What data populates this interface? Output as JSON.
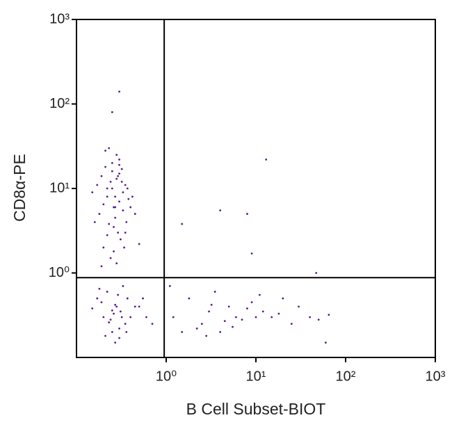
{
  "chart_data": {
    "type": "scatter",
    "x_label": "B Cell Subset-BIOT",
    "y_label": "CD8α-PE",
    "log_scale": true,
    "color": "#5b1a8c",
    "xlim": [
      0.1,
      1000
    ],
    "ylim": [
      0.1,
      1000
    ],
    "xticks": [
      {
        "value": 1,
        "label": "10⁰"
      },
      {
        "value": 10,
        "label": "10¹"
      },
      {
        "value": 100,
        "label": "10²"
      },
      {
        "value": 1000,
        "label": "10³"
      }
    ],
    "yticks": [
      {
        "value": 1,
        "label": "10⁰"
      },
      {
        "value": 10,
        "label": "10¹"
      },
      {
        "value": 100,
        "label": "10²"
      },
      {
        "value": 1000,
        "label": "10³"
      }
    ],
    "gates": {
      "x": 0.95,
      "y": 0.88
    },
    "x": [
      0.22,
      0.3,
      0.18,
      0.27,
      0.35,
      0.25,
      0.2,
      0.32,
      0.4,
      0.28,
      0.16,
      0.24,
      0.3,
      0.37,
      0.21,
      0.26,
      0.33,
      0.19,
      0.29,
      0.45,
      0.23,
      0.31,
      0.27,
      0.17,
      0.36,
      0.25,
      0.22,
      0.34,
      0.28,
      0.3,
      0.2,
      0.26,
      0.38,
      0.24,
      0.29,
      0.15,
      0.32,
      0.27,
      0.21,
      0.5,
      0.25,
      0.33,
      0.19,
      0.28,
      0.42,
      0.23,
      0.3,
      0.26,
      0.35,
      0.22,
      0.2,
      0.28,
      0.35,
      0.17,
      0.25,
      0.31,
      0.22,
      0.4,
      0.27,
      0.19,
      0.33,
      0.24,
      0.3,
      0.15,
      0.37,
      0.26,
      0.21,
      0.29,
      0.45,
      0.23,
      0.32,
      0.18,
      0.27,
      0.36,
      0.25,
      0.6,
      0.55,
      0.7,
      0.5,
      0.3,
      1.2,
      1.8,
      2.5,
      3,
      4,
      5,
      6,
      2.2,
      3.5,
      7,
      9,
      12,
      15,
      20,
      25,
      30,
      40,
      50,
      65,
      1.5,
      2.8,
      4.5,
      8,
      11,
      18,
      3.2,
      5.5,
      10,
      1.1,
      60,
      13,
      4,
      8,
      1.5,
      0.3,
      0.25,
      9,
      47
    ],
    "y": [
      10,
      15,
      5,
      8,
      3,
      20,
      2,
      12,
      6,
      25,
      4,
      1.5,
      7,
      10,
      18,
      3.5,
      9,
      1.2,
      14,
      5,
      30,
      2.5,
      6,
      11,
      4,
      16,
      8,
      2,
      13,
      22,
      6.5,
      1.8,
      7.5,
      12,
      3,
      9,
      17,
      4.5,
      28,
      2.2,
      10,
      5.5,
      14,
      1.3,
      8,
      3.8,
      19,
      6,
      11,
      2.8,
      0.3,
      0.4,
      0.25,
      0.5,
      0.2,
      0.35,
      0.6,
      0.3,
      0.15,
      0.45,
      0.7,
      0.28,
      0.22,
      0.38,
      0.5,
      0.33,
      0.18,
      0.55,
      0.4,
      0.26,
      0.3,
      0.65,
      0.42,
      0.2,
      0.36,
      0.3,
      0.5,
      0.25,
      0.4,
      0.17,
      0.3,
      0.5,
      0.25,
      0.35,
      0.2,
      0.4,
      0.3,
      0.22,
      0.6,
      0.28,
      0.45,
      0.35,
      0.3,
      0.5,
      0.25,
      0.4,
      0.3,
      0.28,
      0.32,
      0.2,
      0.18,
      0.27,
      0.38,
      0.55,
      0.33,
      0.42,
      0.23,
      0.3,
      0.7,
      0.15,
      22,
      5.5,
      5,
      3.8,
      140,
      80,
      1.7,
      1
    ]
  }
}
